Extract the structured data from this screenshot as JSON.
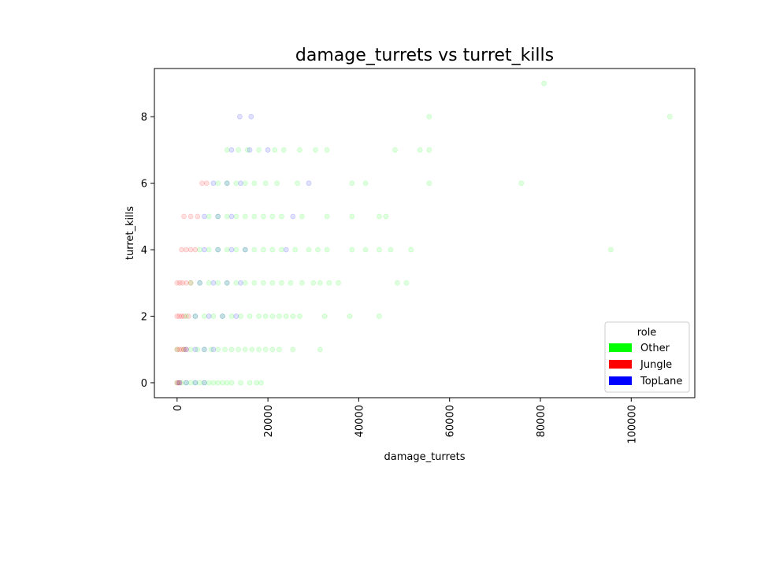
{
  "chart_data": {
    "type": "scatter",
    "title": "damage_turrets vs turret_kills",
    "xlabel": "damage_turrets",
    "ylabel": "turret_kills",
    "xlim": [
      -5000,
      114000
    ],
    "ylim": [
      -0.45,
      9.45
    ],
    "xticks": [
      0,
      20000,
      40000,
      60000,
      80000,
      100000
    ],
    "xtick_labels": [
      "0",
      "20000",
      "40000",
      "60000",
      "80000",
      "100000"
    ],
    "yticks": [
      0,
      2,
      4,
      6,
      8
    ],
    "ytick_labels": [
      "0",
      "2",
      "4",
      "6",
      "8"
    ],
    "grid": false,
    "legend": {
      "title": "role",
      "position": "lower-right",
      "entries": [
        {
          "label": "Other",
          "color": "#00ff00"
        },
        {
          "label": "Jungle",
          "color": "#ff0000"
        },
        {
          "label": "TopLane",
          "color": "#0000ff"
        }
      ]
    },
    "series": [
      {
        "name": "Other",
        "color": "#00ff00",
        "points": [
          [
            0,
            0
          ],
          [
            1000,
            0
          ],
          [
            2000,
            0
          ],
          [
            3000,
            0
          ],
          [
            4000,
            0
          ],
          [
            5000,
            0
          ],
          [
            6000,
            0
          ],
          [
            7000,
            0
          ],
          [
            8000,
            0
          ],
          [
            9000,
            0
          ],
          [
            10000,
            0
          ],
          [
            11000,
            0
          ],
          [
            12000,
            0
          ],
          [
            14000,
            0
          ],
          [
            16000,
            0
          ],
          [
            17500,
            0
          ],
          [
            18500,
            0
          ],
          [
            0,
            1
          ],
          [
            1500,
            1
          ],
          [
            3000,
            1
          ],
          [
            4500,
            1
          ],
          [
            6000,
            1
          ],
          [
            7500,
            1
          ],
          [
            9000,
            1
          ],
          [
            10500,
            1
          ],
          [
            12000,
            1
          ],
          [
            13500,
            1
          ],
          [
            15000,
            1
          ],
          [
            16500,
            1
          ],
          [
            18000,
            1
          ],
          [
            19500,
            1
          ],
          [
            21000,
            1
          ],
          [
            22500,
            1
          ],
          [
            25500,
            1
          ],
          [
            31500,
            1
          ],
          [
            2000,
            2
          ],
          [
            4000,
            2
          ],
          [
            6000,
            2
          ],
          [
            8000,
            2
          ],
          [
            10000,
            2
          ],
          [
            12000,
            2
          ],
          [
            14000,
            2
          ],
          [
            16000,
            2
          ],
          [
            18000,
            2
          ],
          [
            19500,
            2
          ],
          [
            21000,
            2
          ],
          [
            22500,
            2
          ],
          [
            24000,
            2
          ],
          [
            25500,
            2
          ],
          [
            27000,
            2
          ],
          [
            32500,
            2
          ],
          [
            38000,
            2
          ],
          [
            44500,
            2
          ],
          [
            3000,
            3
          ],
          [
            5000,
            3
          ],
          [
            7000,
            3
          ],
          [
            9000,
            3
          ],
          [
            11000,
            3
          ],
          [
            13000,
            3
          ],
          [
            15000,
            3
          ],
          [
            17000,
            3
          ],
          [
            19000,
            3
          ],
          [
            21000,
            3
          ],
          [
            23000,
            3
          ],
          [
            25000,
            3
          ],
          [
            27500,
            3
          ],
          [
            30000,
            3
          ],
          [
            31500,
            3
          ],
          [
            33500,
            3
          ],
          [
            35500,
            3
          ],
          [
            48500,
            3
          ],
          [
            50500,
            3
          ],
          [
            5000,
            4
          ],
          [
            7000,
            4
          ],
          [
            9000,
            4
          ],
          [
            11000,
            4
          ],
          [
            13000,
            4
          ],
          [
            15000,
            4
          ],
          [
            17000,
            4
          ],
          [
            19000,
            4
          ],
          [
            21000,
            4
          ],
          [
            23000,
            4
          ],
          [
            26000,
            4
          ],
          [
            29000,
            4
          ],
          [
            31000,
            4
          ],
          [
            33000,
            4
          ],
          [
            38500,
            4
          ],
          [
            41500,
            4
          ],
          [
            44500,
            4
          ],
          [
            47000,
            4
          ],
          [
            51500,
            4
          ],
          [
            95500,
            4
          ],
          [
            7000,
            5
          ],
          [
            9000,
            5
          ],
          [
            11000,
            5
          ],
          [
            13000,
            5
          ],
          [
            15000,
            5
          ],
          [
            17000,
            5
          ],
          [
            19000,
            5
          ],
          [
            21000,
            5
          ],
          [
            23000,
            5
          ],
          [
            27500,
            5
          ],
          [
            33000,
            5
          ],
          [
            38500,
            5
          ],
          [
            44500,
            5
          ],
          [
            46000,
            5
          ],
          [
            9000,
            6
          ],
          [
            11000,
            6
          ],
          [
            13000,
            6
          ],
          [
            15000,
            6
          ],
          [
            17000,
            6
          ],
          [
            19500,
            6
          ],
          [
            22000,
            6
          ],
          [
            26500,
            6
          ],
          [
            38500,
            6
          ],
          [
            41500,
            6
          ],
          [
            55500,
            6
          ],
          [
            75800,
            6
          ],
          [
            11000,
            7
          ],
          [
            13500,
            7
          ],
          [
            15500,
            7
          ],
          [
            18000,
            7
          ],
          [
            21500,
            7
          ],
          [
            23500,
            7
          ],
          [
            27000,
            7
          ],
          [
            30500,
            7
          ],
          [
            33000,
            7
          ],
          [
            48000,
            7
          ],
          [
            53500,
            7
          ],
          [
            55500,
            7
          ],
          [
            55500,
            8
          ],
          [
            108500,
            8
          ],
          [
            80800,
            9
          ]
        ]
      },
      {
        "name": "Jungle",
        "color": "#ff0000",
        "points": [
          [
            0,
            0
          ],
          [
            300,
            0
          ],
          [
            600,
            0
          ],
          [
            0,
            1
          ],
          [
            500,
            1
          ],
          [
            1000,
            1
          ],
          [
            1500,
            1
          ],
          [
            2000,
            1
          ],
          [
            0,
            2
          ],
          [
            500,
            2
          ],
          [
            1000,
            2
          ],
          [
            1500,
            2
          ],
          [
            2500,
            2
          ],
          [
            0,
            3
          ],
          [
            600,
            3
          ],
          [
            1200,
            3
          ],
          [
            2000,
            3
          ],
          [
            3000,
            3
          ],
          [
            1000,
            4
          ],
          [
            2000,
            4
          ],
          [
            3000,
            4
          ],
          [
            4000,
            4
          ],
          [
            1500,
            5
          ],
          [
            3000,
            5
          ],
          [
            4500,
            5
          ],
          [
            5500,
            6
          ],
          [
            6500,
            6
          ]
        ]
      },
      {
        "name": "TopLane",
        "color": "#0000ff",
        "points": [
          [
            500,
            0
          ],
          [
            2000,
            0
          ],
          [
            4000,
            0
          ],
          [
            6000,
            0
          ],
          [
            2000,
            1
          ],
          [
            4000,
            1
          ],
          [
            6000,
            1
          ],
          [
            8000,
            1
          ],
          [
            4000,
            2
          ],
          [
            7000,
            2
          ],
          [
            10000,
            2
          ],
          [
            13000,
            2
          ],
          [
            5000,
            3
          ],
          [
            8000,
            3
          ],
          [
            11000,
            3
          ],
          [
            14000,
            3
          ],
          [
            6000,
            4
          ],
          [
            9000,
            4
          ],
          [
            12000,
            4
          ],
          [
            15000,
            4
          ],
          [
            24000,
            4
          ],
          [
            6000,
            5
          ],
          [
            9000,
            5
          ],
          [
            12000,
            5
          ],
          [
            25500,
            5
          ],
          [
            8000,
            6
          ],
          [
            11000,
            6
          ],
          [
            14000,
            6
          ],
          [
            29000,
            6
          ],
          [
            12000,
            7
          ],
          [
            16000,
            7
          ],
          [
            20000,
            7
          ],
          [
            13800,
            8
          ],
          [
            16300,
            8
          ]
        ]
      }
    ]
  }
}
